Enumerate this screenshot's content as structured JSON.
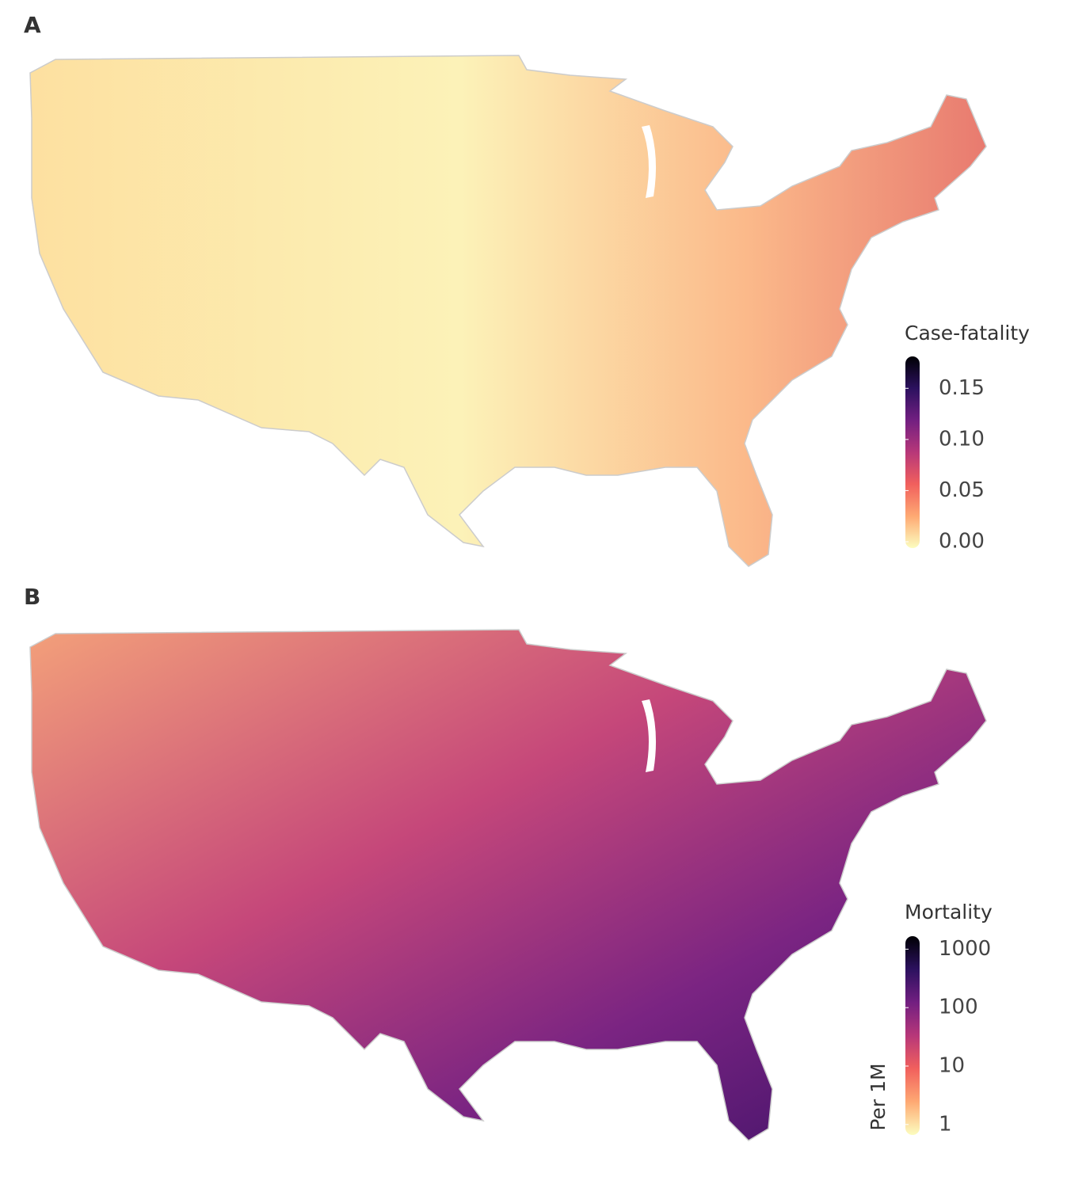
{
  "maps": [
    {
      "label": "A",
      "legend": {
        "title": "Case-fatality",
        "scale": "linear",
        "lim": [
          0,
          0.175
        ],
        "ticks": [
          {
            "value": 0,
            "label": "0.00"
          },
          0.05,
          {
            "value": 0.1,
            "label": "0.10"
          },
          0.15
        ],
        "colors": [
          "#fcfdbf",
          "#fea973",
          "#f1605d",
          "#b73779",
          "#721f81",
          "#2c115f",
          "#000004"
        ]
      }
    },
    {
      "label": "B",
      "legend": {
        "title": "Mortality",
        "subtitle": "Per 1M",
        "scale": "log",
        "lim": [
          0.85,
          1300
        ],
        "ticks": [
          1,
          10,
          100,
          1000
        ],
        "colors": [
          "#fcfdbf",
          "#fea973",
          "#f1605d",
          "#b73779",
          "#721f81",
          "#2c115f",
          "#000004"
        ]
      }
    }
  ]
}
